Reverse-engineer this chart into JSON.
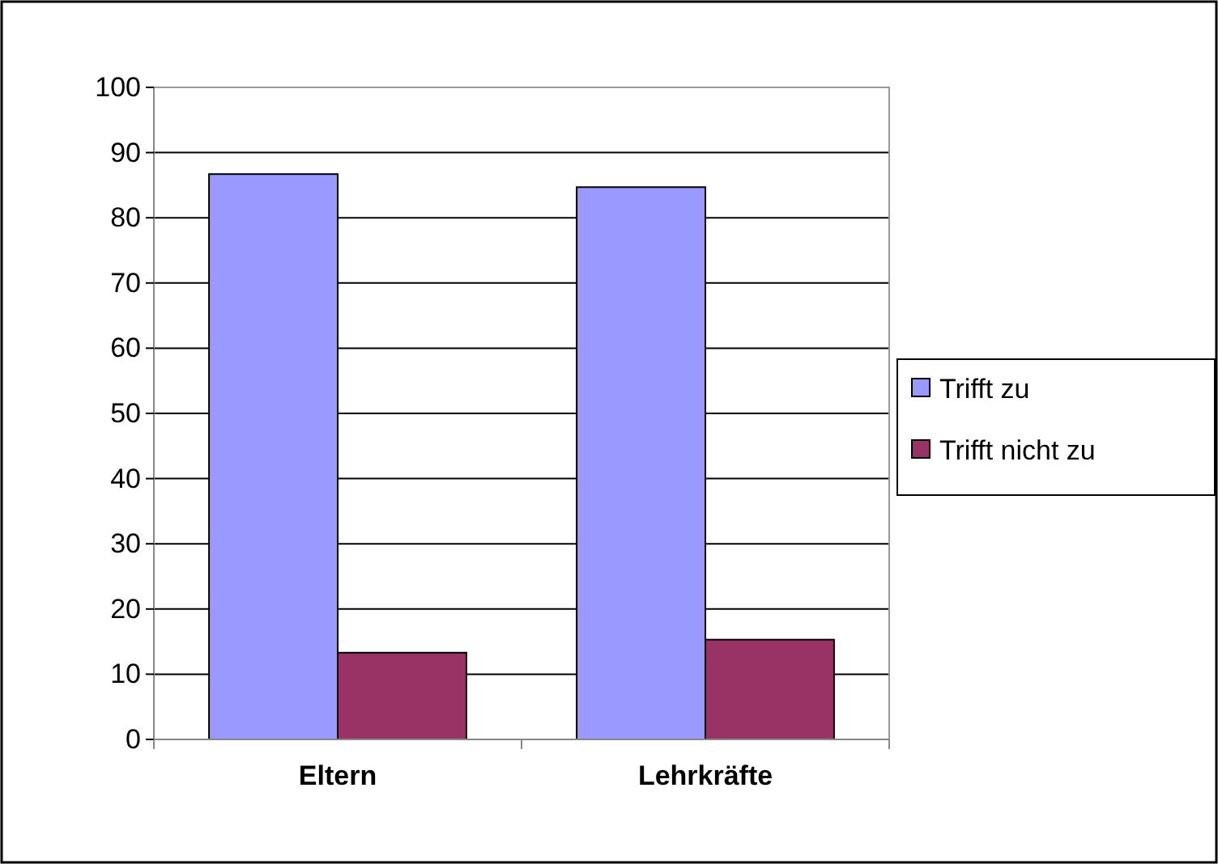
{
  "chart_data": {
    "type": "bar",
    "categories": [
      "Eltern",
      "Lehrkräfte"
    ],
    "series": [
      {
        "name": "Trifft zu",
        "color": "#9999ff",
        "values": [
          86.7,
          84.7
        ]
      },
      {
        "name": "Trifft nicht zu",
        "color": "#993366",
        "values": [
          13.3,
          15.3
        ]
      }
    ],
    "ylim": [
      0,
      100
    ],
    "yticks": [
      0,
      10,
      20,
      30,
      40,
      50,
      60,
      70,
      80,
      90,
      100
    ],
    "grid": "y",
    "legend": "right"
  }
}
